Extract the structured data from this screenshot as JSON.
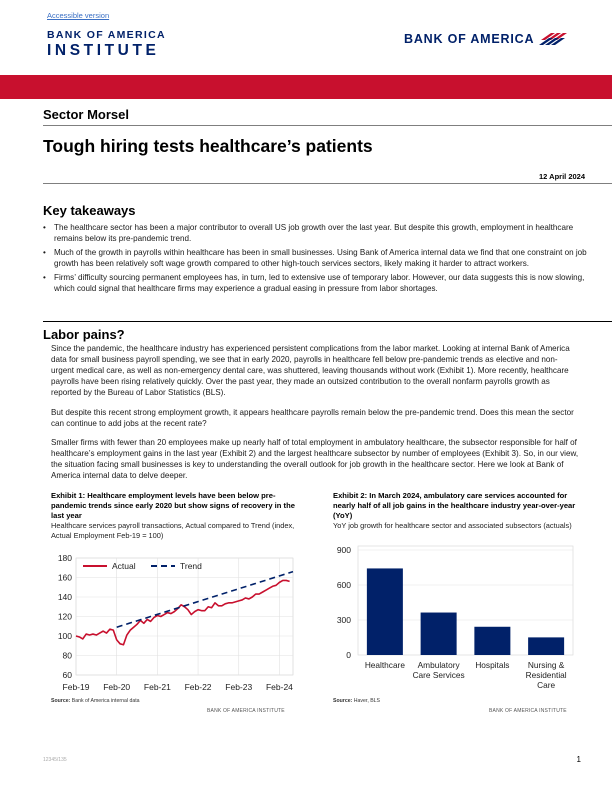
{
  "header": {
    "accessible_link": "Accessible version",
    "institute_logo_line1": "BANK OF AMERICA",
    "institute_logo_line2": "INSTITUTE",
    "boa_logo_text": "BANK OF AMERICA",
    "brand_red": "#c8102e",
    "brand_navy": "#012169"
  },
  "report": {
    "type": "Sector Morsel",
    "title": "Tough hiring tests healthcare’s patients",
    "date": "12 April 2024"
  },
  "takeaways": {
    "heading": "Key takeaways",
    "items": [
      "The healthcare sector has been a major contributor to overall US job growth over the last year. But despite this growth, employment in healthcare remains below its pre-pandemic trend.",
      "Much of the growth in payrolls within healthcare has been in small businesses. Using Bank of America internal data we find that one constraint on job growth has been relatively soft wage growth compared to other high-touch services sectors, likely making it harder to attract workers.",
      "Firms’ difficulty sourcing permanent employees has, in turn, led to extensive use of temporary labor. However, our data suggests this is now slowing, which could signal that healthcare firms may experience a gradual easing in pressure from labor shortages."
    ]
  },
  "labor": {
    "heading": "Labor pains?",
    "p1": "Since the pandemic, the healthcare industry has experienced persistent complications from the labor market. Looking at internal Bank of America data for small business payroll spending, we see that in early 2020, payrolls in healthcare fell below pre-pandemic trends as elective and non-urgent medical care, as well as non-emergency dental care, was shuttered, leaving thousands without work (Exhibit 1). More recently, healthcare payrolls have been rising relatively quickly. Over the past year, they made an outsized contribution to the overall nonfarm payrolls growth as reported by the Bureau of Labor Statistics (BLS).",
    "p2": "But despite this recent strong employment growth, it appears healthcare payrolls remain below the pre-pandemic trend. Does this mean the sector can continue to add jobs at the recent rate?",
    "p3": "Smaller firms with fewer than 20 employees make up nearly half of total employment in ambulatory healthcare, the subsector responsible for half of healthcare’s employment gains in the last year (Exhibit 2) and the largest healthcare subsector by number of employees (Exhibit 3). So, in our view, the situation facing small businesses is key to understanding the overall outlook for job growth in the healthcare sector. Here we look at Bank of America internal data to delve deeper."
  },
  "exhibit1": {
    "heading": "Exhibit 1: Healthcare employment levels have been below pre-pandemic trends since early 2020 but show signs of recovery in the last year",
    "subtitle": "Healthcare services payroll transactions, Actual compared to Trend (index, Actual Employment Feb-19 = 100)",
    "source_label": "Source:",
    "source_text": "Bank of America internal data",
    "credit": "BANK OF AMERICA INSTITUTE"
  },
  "exhibit2": {
    "heading": "Exhibit 2: In March 2024, ambulatory care services accounted for nearly half of all job gains in the healthcare industry year-over-year (YoY)",
    "subtitle": "YoY job growth for healthcare sector and associated subsectors (actuals)",
    "source_label": "Source:",
    "source_text": "Haver, BLS",
    "credit": "BANK OF AMERICA INSTITUTE"
  },
  "chart_data": [
    {
      "type": "line",
      "x_tick_labels": [
        "Feb-19",
        "Feb-20",
        "Feb-21",
        "Feb-22",
        "Feb-23",
        "Feb-24"
      ],
      "x_range": [
        0,
        64
      ],
      "ylim": [
        60,
        180
      ],
      "y_ticks": [
        60,
        80,
        100,
        120,
        140,
        160,
        180
      ],
      "grid": true,
      "legend_position": "top-left",
      "series": [
        {
          "name": "Actual",
          "color": "#c8102e",
          "style": "solid",
          "x": [
            0,
            1,
            2,
            3,
            4,
            5,
            6,
            7,
            8,
            9,
            10,
            11,
            12,
            13,
            14,
            15,
            16,
            17,
            18,
            19,
            20,
            21,
            22,
            23,
            24,
            25,
            26,
            27,
            28,
            29,
            30,
            31,
            32,
            33,
            34,
            35,
            36,
            37,
            38,
            39,
            40,
            41,
            42,
            43,
            44,
            45,
            46,
            47,
            48,
            49,
            50,
            51,
            52,
            53,
            54,
            55,
            56,
            57,
            58,
            59,
            60,
            61,
            62,
            63
          ],
          "values": [
            100,
            99,
            97,
            102,
            101,
            102,
            101,
            103,
            105,
            103,
            107,
            106,
            96,
            92,
            91,
            101,
            106,
            109,
            112,
            116,
            113,
            117,
            115,
            119,
            121,
            120,
            122,
            124,
            123,
            125,
            128,
            132,
            130,
            127,
            122,
            125,
            127,
            126,
            126,
            130,
            129,
            134,
            131,
            131,
            133,
            134,
            134,
            135,
            136,
            137,
            139,
            138,
            140,
            143,
            143,
            145,
            147,
            149,
            151,
            152,
            155,
            157,
            157,
            156
          ]
        },
        {
          "name": "Trend",
          "color": "#012169",
          "style": "dashed",
          "x": [
            12,
            64
          ],
          "values": [
            109,
            166
          ]
        }
      ]
    },
    {
      "type": "bar",
      "categories": [
        "Healthcare",
        "Ambulatory Care Services",
        "Hospitals",
        "Nursing & Residential Care"
      ],
      "category_lines": [
        [
          "Healthcare"
        ],
        [
          "Ambulatory",
          "Care Services"
        ],
        [
          "Hospitals"
        ],
        [
          "Nursing &",
          "Residential",
          "Care"
        ]
      ],
      "values": [
        742,
        364,
        242,
        151
      ],
      "ylim": [
        0,
        900
      ],
      "y_ticks": [
        0,
        300,
        600,
        900
      ],
      "color": "#012169",
      "grid": true
    }
  ],
  "footer": {
    "code": "12345/135",
    "page": "1"
  }
}
